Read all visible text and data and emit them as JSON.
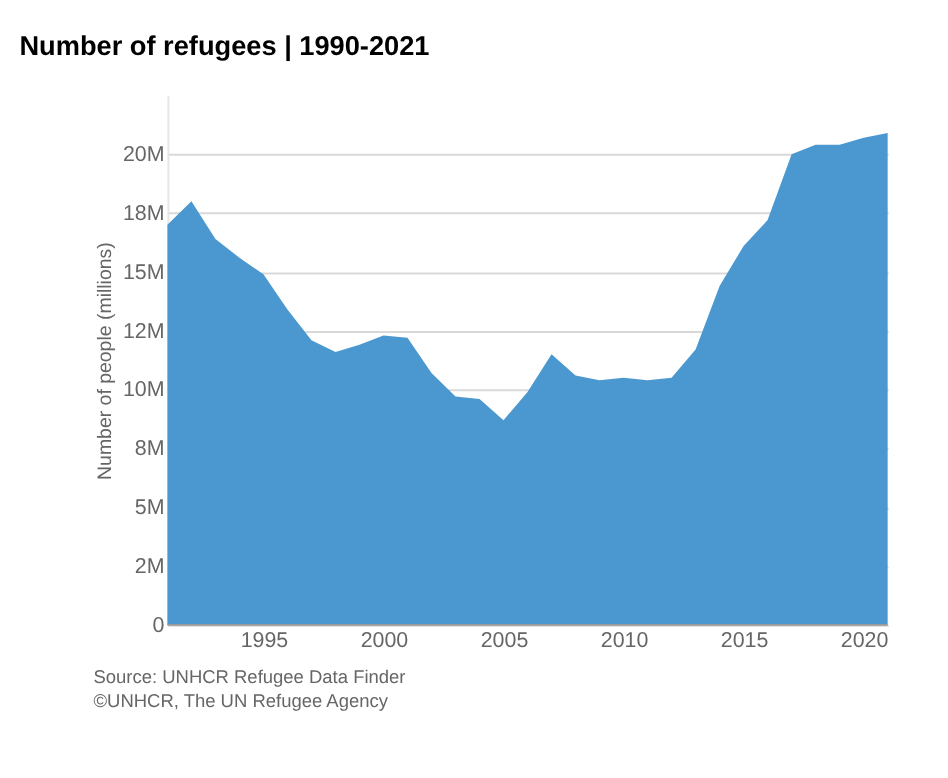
{
  "chart_data": {
    "type": "area",
    "title": "Number of refugees | 1990-2021",
    "ylabel": "Number of people (millions)",
    "x": [
      1991,
      1992,
      1993,
      1994,
      1995,
      1996,
      1997,
      1998,
      1999,
      2000,
      2001,
      2002,
      2003,
      2004,
      2005,
      2006,
      2007,
      2008,
      2009,
      2010,
      2011,
      2012,
      2013,
      2014,
      2015,
      2016,
      2017,
      2018,
      2019,
      2020,
      2021
    ],
    "series": [
      {
        "color": "#4a98cf",
        "values": [
          17.0,
          18.0,
          16.4,
          15.6,
          14.9,
          13.4,
          12.1,
          11.6,
          11.9,
          12.3,
          12.2,
          10.7,
          9.7,
          9.6,
          8.7,
          9.9,
          11.5,
          10.6,
          10.4,
          10.5,
          10.4,
          10.5,
          11.7,
          14.4,
          16.1,
          17.2,
          20.0,
          20.4,
          20.4,
          20.7,
          20.9
        ]
      }
    ],
    "xlim": [
      1991,
      2021
    ],
    "xticks": [
      1995,
      2000,
      2005,
      2010,
      2015,
      2020
    ],
    "ylim": [
      0,
      22.5
    ],
    "yticks": [
      0,
      {
        "value": 2.5,
        "label": "2M"
      },
      {
        "value": 5,
        "label": "5M"
      },
      {
        "value": 7.5,
        "label": "8M"
      },
      {
        "value": 10,
        "label": "10M"
      },
      {
        "value": 12.5,
        "label": "12M"
      },
      {
        "value": 15,
        "label": "15M"
      },
      {
        "value": 17.5,
        "label": "18M"
      },
      {
        "value": 20,
        "label": "20M"
      }
    ],
    "grid": "y",
    "annotations": [
      "Source: UNHCR Refugee Data Finder",
      "©UNHCR, The UN Refugee Agency"
    ]
  }
}
